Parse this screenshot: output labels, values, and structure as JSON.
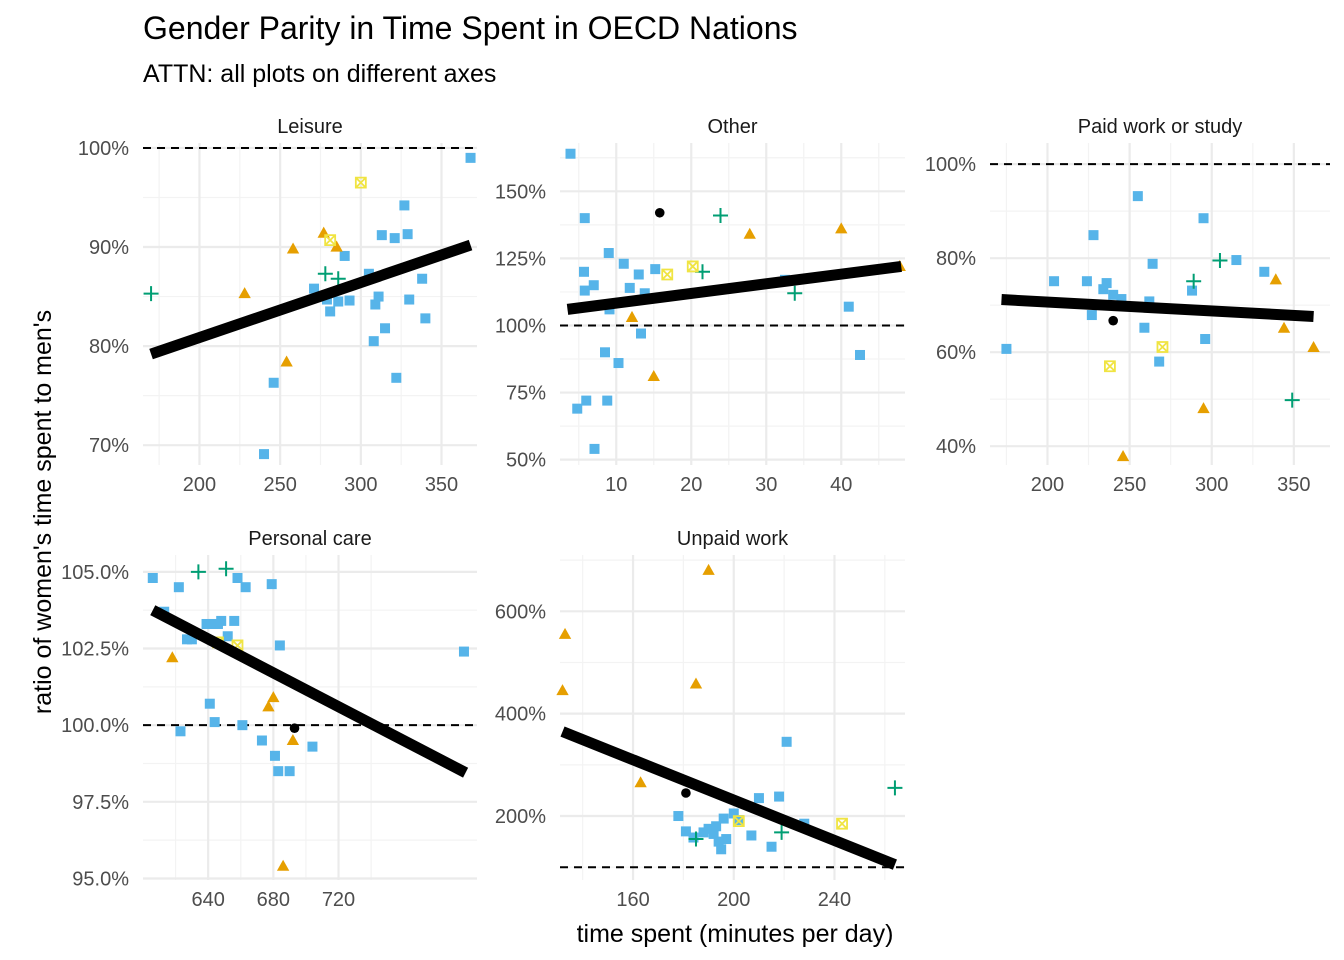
{
  "title": "Gender Parity in Time Spent in OECD Nations",
  "subtitle": "ATTN: all plots on different axes",
  "xlabel": "time spent (minutes per day)",
  "ylabel": "ratio of women's time spent to men's",
  "colors": {
    "series_blue": "#56B4E9",
    "series_orange": "#E69F00",
    "series_green": "#009E73",
    "series_yellow": "#F0E442",
    "series_black": "#000000",
    "trend": "#000000",
    "reference_line": "#000000",
    "grid": "#EBEBEB"
  },
  "marker_shapes": {
    "series_blue": "square",
    "series_orange": "triangle",
    "series_green": "plus",
    "series_yellow": "square-cross",
    "series_black": "circle"
  },
  "chart_data": [
    {
      "type": "scatter",
      "panel": "Leisure",
      "xlim": [
        165,
        372
      ],
      "ylim": [
        0.68,
        1.005
      ],
      "x_ticks": [
        200,
        250,
        300,
        350
      ],
      "x_tick_labels": [
        "200",
        "250",
        "300",
        "350"
      ],
      "y_ticks": [
        0.7,
        0.8,
        0.9,
        1.0
      ],
      "y_tick_labels": [
        "70%",
        "80%",
        "90%",
        "100%"
      ],
      "reference_y": 1.0,
      "trend": {
        "x": [
          170,
          368
        ],
        "y": [
          0.792,
          0.902
        ]
      },
      "series": [
        {
          "key": "series_blue",
          "points": [
            [
              240,
              0.691
            ],
            [
              246,
              0.763
            ],
            [
              271,
              0.858
            ],
            [
              279,
              0.847
            ],
            [
              281,
              0.835
            ],
            [
              286,
              0.845
            ],
            [
              290,
              0.891
            ],
            [
              293,
              0.846
            ],
            [
              305,
              0.873
            ],
            [
              308,
              0.805
            ],
            [
              309,
              0.842
            ],
            [
              311,
              0.85
            ],
            [
              313,
              0.912
            ],
            [
              315,
              0.818
            ],
            [
              321,
              0.909
            ],
            [
              322,
              0.768
            ],
            [
              327,
              0.942
            ],
            [
              329,
              0.913
            ],
            [
              330,
              0.847
            ],
            [
              338,
              0.868
            ],
            [
              340,
              0.828
            ],
            [
              368,
              0.99
            ]
          ]
        },
        {
          "key": "series_orange",
          "points": [
            [
              228,
              0.853
            ],
            [
              254,
              0.784
            ],
            [
              258,
              0.898
            ],
            [
              277,
              0.914
            ],
            [
              285,
              0.9
            ]
          ]
        },
        {
          "key": "series_green",
          "points": [
            [
              170,
              0.853
            ],
            [
              278,
              0.873
            ],
            [
              286,
              0.868
            ]
          ]
        },
        {
          "key": "series_yellow",
          "points": [
            [
              281,
              0.907
            ],
            [
              300,
              0.965
            ]
          ]
        },
        {
          "key": "series_black",
          "points": []
        }
      ]
    },
    {
      "type": "scatter",
      "panel": "Other",
      "xlim": [
        2.5,
        48.5
      ],
      "ylim": [
        0.48,
        1.68
      ],
      "x_ticks": [
        10,
        20,
        30,
        40
      ],
      "x_tick_labels": [
        "10",
        "20",
        "30",
        "40"
      ],
      "y_ticks": [
        0.5,
        0.75,
        1.0,
        1.25,
        1.5
      ],
      "y_tick_labels": [
        "50%",
        "75%",
        "100%",
        "125%",
        "150%"
      ],
      "reference_y": 1.0,
      "trend": {
        "x": [
          3.5,
          48
        ],
        "y": [
          1.06,
          1.22
        ]
      },
      "series": [
        {
          "key": "series_blue",
          "points": [
            [
              3.9,
              1.64
            ],
            [
              4.8,
              0.69
            ],
            [
              5.8,
              1.4
            ],
            [
              5.7,
              1.2
            ],
            [
              5.8,
              1.13
            ],
            [
              6.0,
              0.72
            ],
            [
              7.0,
              1.15
            ],
            [
              7.1,
              0.54
            ],
            [
              8.5,
              0.9
            ],
            [
              8.8,
              0.72
            ],
            [
              9.0,
              1.27
            ],
            [
              9.1,
              1.06
            ],
            [
              10.3,
              0.86
            ],
            [
              11.0,
              1.23
            ],
            [
              11.8,
              1.14
            ],
            [
              13.0,
              1.19
            ],
            [
              13.3,
              0.97
            ],
            [
              13.8,
              1.12
            ],
            [
              15.2,
              1.21
            ],
            [
              32.5,
              1.17
            ],
            [
              41.0,
              1.07
            ],
            [
              42.5,
              0.89
            ]
          ]
        },
        {
          "key": "series_orange",
          "points": [
            [
              12.1,
              1.03
            ],
            [
              15.0,
              0.81
            ],
            [
              27.8,
              1.34
            ],
            [
              40.0,
              1.36
            ],
            [
              47.8,
              1.22
            ]
          ]
        },
        {
          "key": "series_green",
          "points": [
            [
              23.9,
              1.41
            ],
            [
              21.5,
              1.2
            ],
            [
              33.8,
              1.12
            ]
          ]
        },
        {
          "key": "series_yellow",
          "points": [
            [
              16.8,
              1.19
            ],
            [
              20.2,
              1.22
            ]
          ]
        },
        {
          "key": "series_black",
          "points": [
            [
              15.8,
              1.42
            ]
          ]
        }
      ]
    },
    {
      "type": "scatter",
      "panel": "Paid work or study",
      "xlim": [
        165,
        372
      ],
      "ylim": [
        0.36,
        1.045
      ],
      "x_ticks": [
        200,
        250,
        300,
        350
      ],
      "x_tick_labels": [
        "200",
        "250",
        "300",
        "350"
      ],
      "y_ticks": [
        0.4,
        0.6,
        0.8,
        1.0
      ],
      "y_tick_labels": [
        "40%",
        "60%",
        "80%",
        "100%"
      ],
      "reference_y": 1.0,
      "trend": {
        "x": [
          172,
          362
        ],
        "y": [
          0.712,
          0.676
        ]
      },
      "series": [
        {
          "key": "series_blue",
          "points": [
            [
              175,
              0.607
            ],
            [
              204,
              0.751
            ],
            [
              224,
              0.751
            ],
            [
              227,
              0.679
            ],
            [
              228,
              0.849
            ],
            [
              234,
              0.734
            ],
            [
              236,
              0.747
            ],
            [
              240,
              0.722
            ],
            [
              245,
              0.713
            ],
            [
              255,
              0.932
            ],
            [
              259,
              0.652
            ],
            [
              262,
              0.708
            ],
            [
              264,
              0.788
            ],
            [
              268,
              0.58
            ],
            [
              288,
              0.731
            ],
            [
              295,
              0.885
            ],
            [
              296,
              0.628
            ],
            [
              315,
              0.796
            ],
            [
              332,
              0.771
            ]
          ]
        },
        {
          "key": "series_orange",
          "points": [
            [
              246,
              0.378
            ],
            [
              295,
              0.48
            ],
            [
              339,
              0.754
            ],
            [
              344,
              0.651
            ],
            [
              362,
              0.61
            ]
          ]
        },
        {
          "key": "series_green",
          "points": [
            [
              289,
              0.751
            ],
            [
              305,
              0.795
            ],
            [
              349,
              0.498
            ]
          ]
        },
        {
          "key": "series_yellow",
          "points": [
            [
              238,
              0.57
            ],
            [
              270,
              0.611
            ]
          ]
        },
        {
          "key": "series_black",
          "points": [
            [
              240,
              0.667
            ]
          ]
        }
      ]
    },
    {
      "type": "scatter",
      "panel": "Personal care",
      "xlim": [
        600,
        805
      ],
      "ylim": [
        0.9495,
        1.0555
      ],
      "x_ticks": [
        640,
        680,
        720
      ],
      "x_tick_labels": [
        "640",
        "680",
        "720"
      ],
      "y_ticks": [
        0.95,
        0.975,
        1.0,
        1.025,
        1.05
      ],
      "y_tick_labels": [
        "95.0%",
        "97.5%",
        "100.0%",
        "102.5%",
        "105.0%"
      ],
      "reference_y": 1.0,
      "trend": {
        "x": [
          606,
          798
        ],
        "y": [
          1.0375,
          0.9845
        ]
      },
      "series": [
        {
          "key": "series_blue",
          "points": [
            [
              606,
              1.048
            ],
            [
              613,
              1.037
            ],
            [
              622,
              1.045
            ],
            [
              623,
              0.998
            ],
            [
              627,
              1.028
            ],
            [
              630,
              1.028
            ],
            [
              639,
              1.033
            ],
            [
              641,
              1.007
            ],
            [
              643,
              1.033
            ],
            [
              644,
              1.001
            ],
            [
              646,
              1.033
            ],
            [
              648,
              1.034
            ],
            [
              652,
              1.029
            ],
            [
              656,
              1.034
            ],
            [
              658,
              1.048
            ],
            [
              661,
              1.0
            ],
            [
              663,
              1.045
            ],
            [
              673,
              0.995
            ],
            [
              679,
              1.046
            ],
            [
              681,
              0.99
            ],
            [
              683,
              0.985
            ],
            [
              684,
              1.026
            ],
            [
              690,
              0.985
            ],
            [
              704,
              0.993
            ],
            [
              797,
              1.024
            ]
          ]
        },
        {
          "key": "series_orange",
          "points": [
            [
              618,
              1.022
            ],
            [
              677,
              1.006
            ],
            [
              680,
              1.009
            ],
            [
              686,
              0.954
            ],
            [
              692,
              0.995
            ]
          ]
        },
        {
          "key": "series_green",
          "points": [
            [
              634,
              1.05
            ],
            [
              651,
              1.051
            ]
          ]
        },
        {
          "key": "series_yellow",
          "points": [
            [
              646,
              1.027
            ],
            [
              658,
              1.026
            ]
          ]
        },
        {
          "key": "series_black",
          "points": [
            [
              693,
              0.999
            ]
          ]
        }
      ]
    },
    {
      "type": "scatter",
      "panel": "Unpaid work",
      "xlim": [
        131,
        268
      ],
      "ylim": [
        0.75,
        7.1
      ],
      "x_ticks": [
        160,
        200,
        240
      ],
      "x_tick_labels": [
        "160",
        "200",
        "240"
      ],
      "y_ticks": [
        2.0,
        4.0,
        6.0
      ],
      "y_tick_labels": [
        "200%",
        "400%",
        "600%"
      ],
      "reference_y": 1.0,
      "trend": {
        "x": [
          132,
          264
        ],
        "y": [
          3.65,
          1.05
        ]
      },
      "series": [
        {
          "key": "series_blue",
          "points": [
            [
              178,
              2.0
            ],
            [
              181,
              1.7
            ],
            [
              184,
              1.58
            ],
            [
              188,
              1.68
            ],
            [
              190,
              1.75
            ],
            [
              192,
              1.65
            ],
            [
              193,
              1.8
            ],
            [
              194,
              1.5
            ],
            [
              195,
              1.35
            ],
            [
              196,
              1.95
            ],
            [
              197,
              1.55
            ],
            [
              200,
              2.05
            ],
            [
              202,
              1.92
            ],
            [
              207,
              1.62
            ],
            [
              210,
              2.35
            ],
            [
              215,
              1.4
            ],
            [
              218,
              2.38
            ],
            [
              221,
              3.45
            ],
            [
              228,
              1.85
            ]
          ]
        },
        {
          "key": "series_orange",
          "points": [
            [
              132,
              4.45
            ],
            [
              133,
              5.55
            ],
            [
              163,
              2.65
            ],
            [
              185,
              4.58
            ],
            [
              190,
              6.8
            ]
          ]
        },
        {
          "key": "series_green",
          "points": [
            [
              185,
              1.55
            ],
            [
              219,
              1.68
            ],
            [
              264,
              2.55
            ]
          ]
        },
        {
          "key": "series_yellow",
          "points": [
            [
              202,
              1.9
            ],
            [
              243,
              1.85
            ]
          ]
        },
        {
          "key": "series_black",
          "points": [
            [
              181,
              2.45
            ]
          ]
        }
      ]
    }
  ]
}
